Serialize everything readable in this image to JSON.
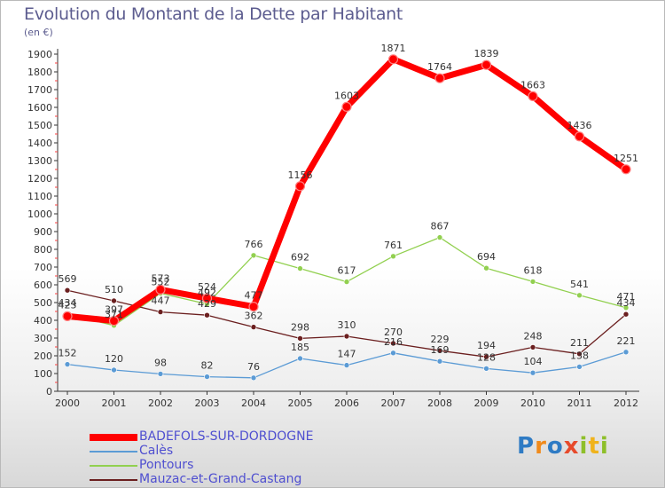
{
  "title": "Evolution du Montant de la Dette par Habitant",
  "unit": "(en €)",
  "logo": "Proxiti",
  "chart_data": {
    "type": "line",
    "title": "Evolution du Montant de la Dette par Habitant",
    "xlabel": "",
    "ylabel": "(en €)",
    "x": [
      "2000",
      "2001",
      "2002",
      "2003",
      "2004",
      "2005",
      "2006",
      "2007",
      "2008",
      "2009",
      "2010",
      "2011",
      "2012"
    ],
    "ylim": [
      0,
      1900
    ],
    "yticks": [
      0,
      100,
      200,
      300,
      400,
      500,
      600,
      700,
      800,
      900,
      1000,
      1100,
      1200,
      1300,
      1400,
      1500,
      1600,
      1700,
      1800,
      1900
    ],
    "grid": false,
    "legend": "bottom-left",
    "series": [
      {
        "name": "BADEFOLS-SUR-DORDOGNE",
        "color": "#ff0000",
        "values": [
          423,
          397,
          573,
          524,
          477,
          1156,
          1603,
          1871,
          1764,
          1839,
          1663,
          1436,
          1251
        ]
      },
      {
        "name": "Calès",
        "color": "#5b9bd5",
        "values": [
          152,
          120,
          98,
          82,
          76,
          185,
          147,
          216,
          169,
          128,
          104,
          138,
          221
        ]
      },
      {
        "name": "Pontours",
        "color": "#92d050",
        "values": [
          434,
          371,
          552,
          492,
          766,
          692,
          617,
          761,
          867,
          694,
          618,
          541,
          471
        ]
      },
      {
        "name": "Mauzac-et-Grand-Castang",
        "color": "#6b1f1f",
        "values": [
          569,
          510,
          447,
          429,
          362,
          298,
          310,
          270,
          229,
          194,
          248,
          211,
          434
        ]
      }
    ]
  }
}
